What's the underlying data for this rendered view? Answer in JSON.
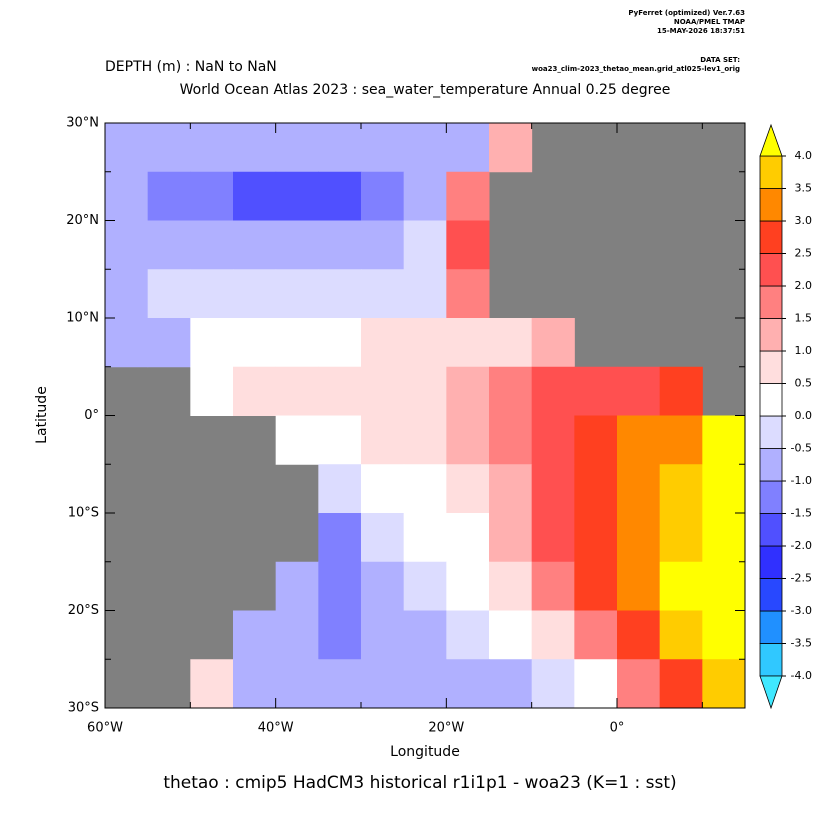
{
  "chart_data": {
    "type": "heatmap",
    "header": [
      "PyFerret (optimized) Ver.7.63",
      "NOAA/PMEL TMAP",
      "15-MAY-2026 18:37:51"
    ],
    "dataset_label": "DATA SET:",
    "dataset": "woa23_clim-2023_thetao_mean.grid_atl025-lev1_orig",
    "subtitle": "DEPTH (m) : NaN to NaN",
    "title": "World Ocean Atlas 2023 : sea_water_temperature Annual  0.25 degree",
    "xlabel": "Longitude",
    "ylabel": "Latitude",
    "footer": "thetao : cmip5 HadCM3 historical r1i1p1 - woa23  (K=1 : sst)",
    "xlim": [
      -60,
      15
    ],
    "ylim": [
      -30,
      30
    ],
    "xticks": [
      {
        "value": -60,
        "label": "60°W"
      },
      {
        "value": -40,
        "label": "40°W"
      },
      {
        "value": -20,
        "label": "20°W"
      },
      {
        "value": 0,
        "label": "0°"
      }
    ],
    "xminor_ticks": [
      -50,
      -30,
      -10,
      10
    ],
    "yticks": [
      {
        "value": 30,
        "label": "30°N"
      },
      {
        "value": 20,
        "label": "20°N"
      },
      {
        "value": 10,
        "label": "10°N"
      },
      {
        "value": 0,
        "label": "0°"
      },
      {
        "value": -10,
        "label": "10°S"
      },
      {
        "value": -20,
        "label": "20°S"
      },
      {
        "value": -30,
        "label": "30°S"
      }
    ],
    "yminor_ticks": [
      25,
      15,
      5,
      -5,
      -15,
      -25
    ],
    "land_color": "#808080",
    "field": {
      "lon_edges": [
        -60,
        -55,
        -50,
        -45,
        -40,
        -35,
        -30,
        -25,
        -20,
        -15,
        -10,
        -5,
        0,
        5,
        10,
        15
      ],
      "lat_edges": [
        30,
        25,
        20,
        15,
        10,
        5,
        0,
        -5,
        -10,
        -15,
        -20,
        -25,
        -30
      ],
      "values": [
        [
          -1,
          -1,
          -1,
          -1,
          -1,
          -1,
          -1,
          -1,
          -0.6,
          1,
          null,
          null,
          null,
          null,
          null
        ],
        [
          -0.6,
          -1.2,
          -1.2,
          -1.6,
          -1.6,
          -1.6,
          -1.2,
          -0.6,
          1.6,
          null,
          null,
          null,
          null,
          null,
          null
        ],
        [
          -0.6,
          -0.6,
          -0.6,
          -0.6,
          -0.6,
          -0.6,
          -0.6,
          -0.3,
          2.1,
          null,
          null,
          null,
          null,
          null,
          null
        ],
        [
          -0.6,
          -0.3,
          -0.3,
          -0.3,
          -0.3,
          -0.3,
          -0.3,
          -0.3,
          1.6,
          null,
          null,
          null,
          null,
          null,
          null
        ],
        [
          -0.6,
          -0.6,
          0.3,
          0.3,
          0.3,
          0.3,
          0.6,
          0.6,
          0.6,
          0.8,
          1.1,
          null,
          null,
          null,
          null
        ],
        [
          null,
          null,
          0.3,
          0.6,
          0.6,
          0.6,
          0.6,
          0.8,
          1.2,
          1.6,
          2.1,
          2.1,
          2.3,
          2.6,
          null
        ],
        [
          null,
          null,
          null,
          null,
          0.3,
          0.3,
          0.6,
          0.8,
          1.3,
          1.8,
          2.3,
          2.6,
          3.1,
          3.3,
          4.2
        ],
        [
          null,
          null,
          null,
          null,
          null,
          -0.2,
          0.2,
          0.3,
          0.8,
          1.3,
          2.2,
          2.8,
          3.2,
          3.8,
          4.5
        ],
        [
          null,
          null,
          null,
          null,
          null,
          -1.2,
          -0.3,
          0.2,
          0.3,
          1.1,
          2.1,
          2.7,
          3.2,
          3.8,
          4.5
        ],
        [
          null,
          null,
          null,
          null,
          -0.7,
          -1.1,
          -0.6,
          -0.2,
          0.3,
          0.8,
          1.8,
          2.6,
          3.1,
          4.3,
          4.5
        ],
        [
          null,
          null,
          null,
          -0.6,
          -0.6,
          -1.1,
          -0.7,
          -0.6,
          -0.3,
          0.2,
          0.8,
          1.6,
          2.6,
          3.8,
          4.2
        ],
        [
          null,
          null,
          0.6,
          -0.7,
          -0.6,
          -0.6,
          -0.8,
          -0.7,
          -0.6,
          -0.6,
          -0.2,
          0.3,
          1.6,
          2.6,
          3.8
        ]
      ]
    },
    "colorbar": {
      "levels": [
        {
          "value": -4,
          "label": "-4.0"
        },
        -3.5,
        {
          "value": -3,
          "label": "-3.0"
        },
        -2.5,
        {
          "value": -2,
          "label": "-2.0"
        },
        -1.5,
        {
          "value": -1,
          "label": "-1.0"
        },
        -0.5,
        {
          "value": 0,
          "label": "0.0"
        },
        0.5,
        {
          "value": 1,
          "label": "1.0"
        },
        1.5,
        {
          "value": 2,
          "label": "2.0"
        },
        2.5,
        {
          "value": 3,
          "label": "3.0"
        },
        3.5,
        {
          "value": 4,
          "label": "4.0"
        }
      ],
      "colors": [
        "#30c8ff",
        "#2090ff",
        "#2848ff",
        "#3030ff",
        "#5050ff",
        "#8080ff",
        "#b0b0ff",
        "#dcdcff",
        "#ffffff",
        "#ffdede",
        "#ffb0b0",
        "#ff8080",
        "#ff5050",
        "#ff4020",
        "#ff8800",
        "#ffcc00"
      ],
      "under_color": "#40e8ff",
      "over_color": "#ffff00"
    }
  }
}
